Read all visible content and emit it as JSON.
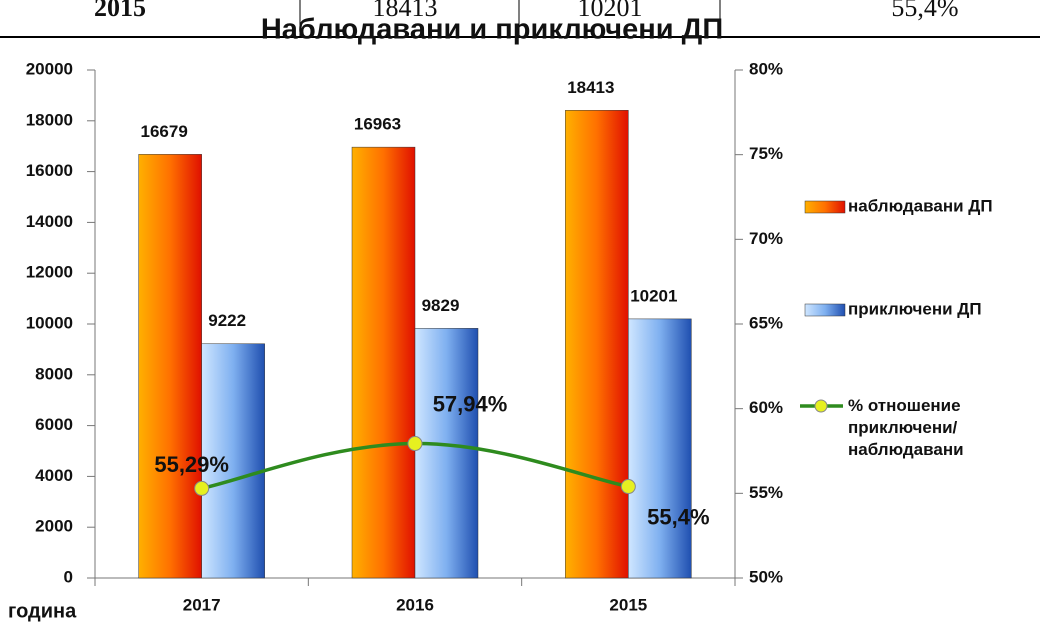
{
  "table": {
    "rows": [
      [
        "2015",
        "18413",
        "10201",
        "55,4%"
      ]
    ]
  },
  "chart_data": {
    "type": "bar",
    "title": "Наблюдавани и приключени ДП",
    "x_label": "година",
    "categories": [
      "2017",
      "2016",
      "2015"
    ],
    "series": [
      {
        "name": "наблюдавани ДП",
        "color": "#ff7f00",
        "values": [
          16679,
          16963,
          18413
        ]
      },
      {
        "name": "приключени ДП",
        "color": "#5b9bd5",
        "values": [
          9222,
          9829,
          10201
        ]
      },
      {
        "name": "% отношение приключени/наблюдавани",
        "color": "#2e8b1e",
        "marker_color": "#e6f020",
        "type": "line",
        "axis": "y2",
        "values": [
          55.29,
          57.94,
          55.4
        ],
        "value_labels": [
          "55,29%",
          "57,94%",
          "55,4%"
        ]
      }
    ],
    "ylim": [
      0,
      20000
    ],
    "yticks": [
      0,
      2000,
      4000,
      6000,
      8000,
      10000,
      12000,
      14000,
      16000,
      18000,
      20000
    ],
    "y2lim": [
      50,
      80
    ],
    "y2ticks": [
      {
        "value": 50,
        "label": "50%"
      },
      {
        "value": 55,
        "label": "55%"
      },
      {
        "value": 60,
        "label": "60%"
      },
      {
        "value": 65,
        "label": "65%"
      },
      {
        "value": 70,
        "label": "70%"
      },
      {
        "value": 75,
        "label": "75%"
      },
      {
        "value": 80,
        "label": "80%"
      }
    ],
    "legend": "right"
  }
}
